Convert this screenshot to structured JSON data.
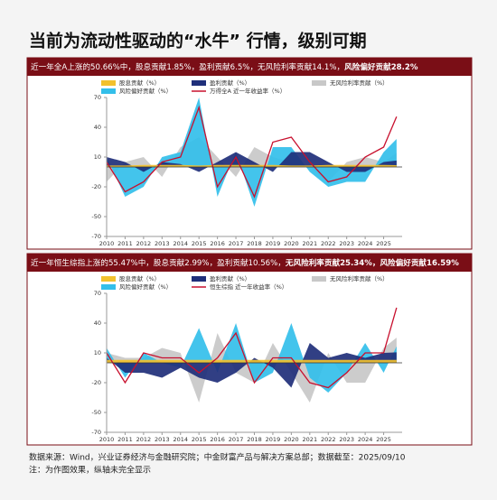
{
  "title": "当前为流动性驱动的“水牛” 行情，级别可期",
  "chart_data": [
    {
      "type": "area",
      "subtitle": "近一年全A上涨的50.66%中，股息贡献1.85%，盈利贡献6.5%，无风险利率贡献14.1%，",
      "subtitle_bold": "风险偏好贡献28.2%",
      "x": [
        2010,
        2011,
        2012,
        2013,
        2014,
        2015,
        2016,
        2017,
        2018,
        2019,
        2020,
        2021,
        2022,
        2023,
        2024,
        2025,
        2025.7
      ],
      "xlim": [
        2010,
        2026
      ],
      "xticks": [
        2010,
        2011,
        2012,
        2013,
        2014,
        2015,
        2016,
        2017,
        2018,
        2019,
        2020,
        2021,
        2022,
        2023,
        2024,
        2025
      ],
      "ylim": [
        -70,
        70
      ],
      "yticks": [
        70,
        40,
        10,
        -20,
        -50,
        -70
      ],
      "series": [
        {
          "name": "无风险利率贡献（%）",
          "color": "#c8c8c8",
          "type": "area",
          "values": [
            -15,
            5,
            10,
            -10,
            20,
            30,
            10,
            -10,
            20,
            10,
            5,
            0,
            -15,
            5,
            10,
            5,
            14.1
          ]
        },
        {
          "name": "风险偏好贡献（%）",
          "color": "#33bfea",
          "type": "area",
          "values": [
            10,
            -30,
            -20,
            10,
            15,
            70,
            -30,
            15,
            -40,
            20,
            20,
            -5,
            -20,
            -15,
            -15,
            15,
            28.2
          ]
        },
        {
          "name": "盈利贡献（%）",
          "color": "#1f2f7a",
          "type": "area",
          "values": [
            10,
            5,
            -5,
            5,
            3,
            -5,
            5,
            15,
            5,
            -5,
            15,
            15,
            5,
            -5,
            -5,
            5,
            6.5
          ]
        },
        {
          "name": "股息贡献（%）",
          "color": "#f2c12e",
          "type": "area",
          "values": [
            1.5,
            1.5,
            2,
            2,
            2,
            1.5,
            2,
            2,
            2,
            2,
            1.5,
            1.5,
            2,
            2,
            2,
            2,
            1.85
          ]
        },
        {
          "name": "万得全A 近一年收益率（%）",
          "color": "#c8102e",
          "type": "line",
          "values": [
            5,
            -25,
            -15,
            5,
            10,
            60,
            -20,
            10,
            -30,
            25,
            30,
            5,
            -15,
            -10,
            10,
            20,
            50.66
          ]
        }
      ]
    },
    {
      "type": "area",
      "subtitle": "近一年恒生综指上涨的55.47%中，股息贡献2.99%，盈利贡献10.56%，",
      "subtitle_bold": "无风险利率贡献25.34%，风险偏好贡献16.59%",
      "x": [
        2010,
        2011,
        2012,
        2013,
        2014,
        2015,
        2016,
        2017,
        2018,
        2019,
        2020,
        2021,
        2022,
        2023,
        2024,
        2025,
        2025.7
      ],
      "xlim": [
        2010,
        2026
      ],
      "xticks": [
        2010,
        2011,
        2012,
        2013,
        2014,
        2015,
        2016,
        2017,
        2018,
        2019,
        2020,
        2021,
        2022,
        2023,
        2024,
        2025
      ],
      "ylim": [
        -70,
        70
      ],
      "yticks": [
        70,
        40,
        10,
        -20,
        -50,
        -70
      ],
      "series": [
        {
          "name": "无风险利率贡献（%）",
          "color": "#c8c8c8",
          "type": "area",
          "values": [
            10,
            5,
            5,
            15,
            10,
            -40,
            30,
            -10,
            -20,
            20,
            -10,
            -40,
            10,
            -20,
            -20,
            15,
            25.34
          ]
        },
        {
          "name": "风险偏好贡献（%）",
          "color": "#33bfea",
          "type": "area",
          "values": [
            15,
            -15,
            10,
            0,
            -5,
            35,
            -10,
            40,
            -20,
            -10,
            40,
            -15,
            -30,
            -10,
            20,
            -10,
            16.59
          ]
        },
        {
          "name": "盈利贡献（%）",
          "color": "#1f2f7a",
          "type": "area",
          "values": [
            5,
            -10,
            -10,
            -15,
            -5,
            -15,
            -20,
            -10,
            5,
            -5,
            -25,
            20,
            5,
            10,
            5,
            10,
            10.56
          ]
        },
        {
          "name": "股息贡献（%）",
          "color": "#f2c12e",
          "type": "area",
          "values": [
            3,
            3,
            3,
            3,
            3,
            3,
            3,
            3,
            3,
            3,
            3,
            3,
            3,
            3,
            3,
            3,
            2.99
          ]
        },
        {
          "name": "恒生综指 近一年收益率（%）",
          "color": "#c8102e",
          "type": "line",
          "values": [
            10,
            -20,
            10,
            5,
            5,
            -10,
            5,
            30,
            -20,
            5,
            5,
            -20,
            -25,
            -10,
            10,
            10,
            55.47
          ]
        }
      ]
    }
  ],
  "notes": [
    "数据来源：Wind，兴业证券经济与金融研究院；中金财富产品与解决方案总部；数据截至：2025/09/10",
    "注：为作图效果，纵轴未完全显示"
  ]
}
